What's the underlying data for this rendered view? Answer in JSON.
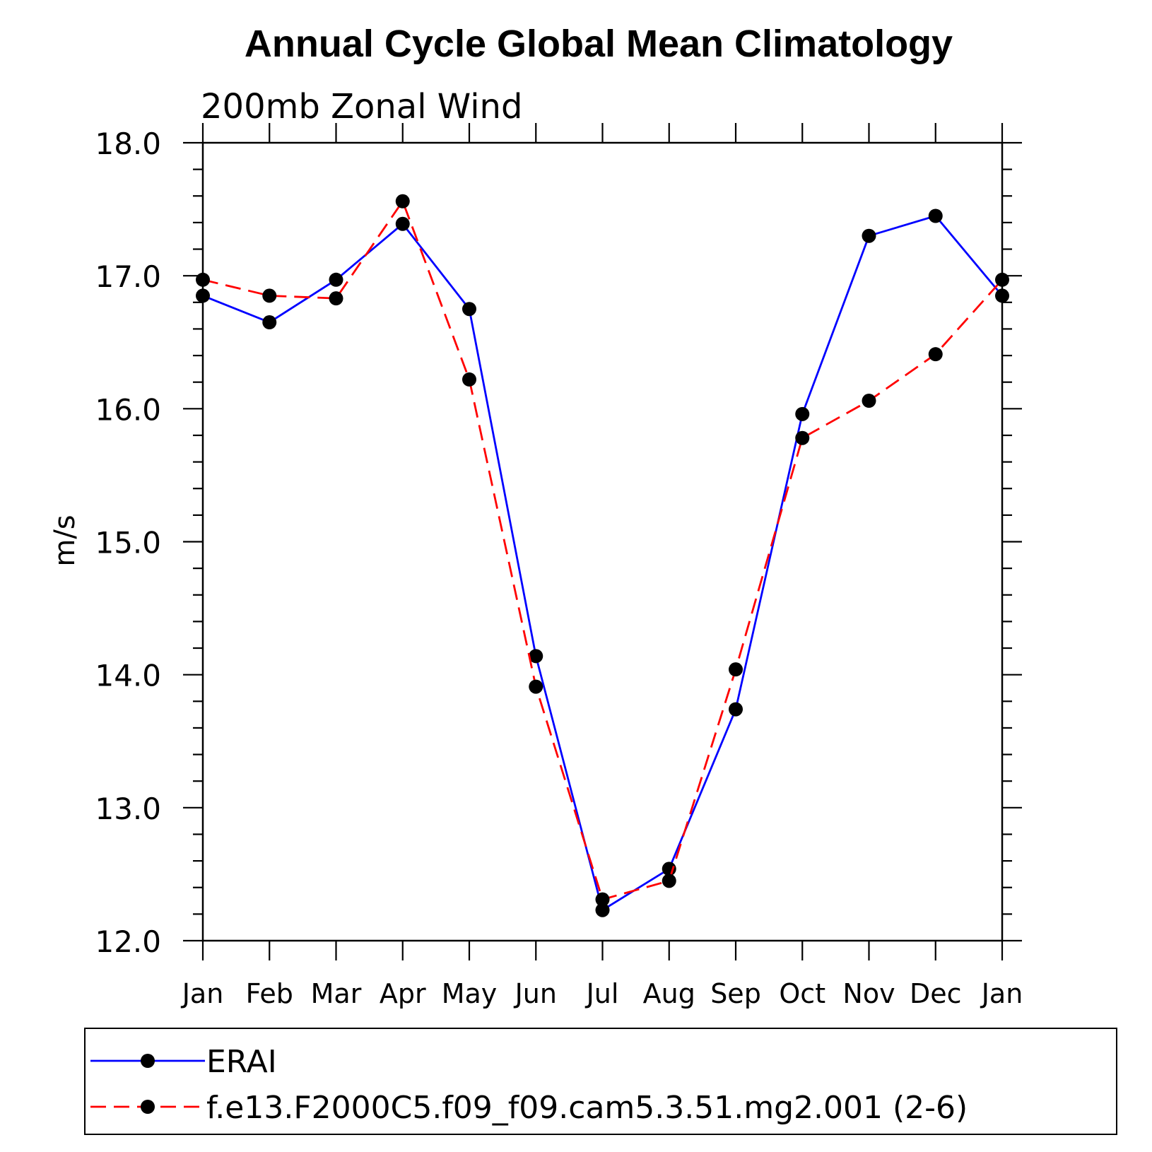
{
  "chart_data": {
    "type": "line",
    "title": "Annual Cycle Global Mean Climatology",
    "subtitle": "200mb Zonal Wind",
    "xlabel": "",
    "ylabel": "m/s",
    "ylim": [
      12.0,
      18.0
    ],
    "yticks": [
      "12.0",
      "13.0",
      "14.0",
      "15.0",
      "16.0",
      "17.0",
      "18.0"
    ],
    "categories": [
      "Jan",
      "Feb",
      "Mar",
      "Apr",
      "May",
      "Jun",
      "Jul",
      "Aug",
      "Sep",
      "Oct",
      "Nov",
      "Dec",
      "Jan"
    ],
    "grid": false,
    "legend_position": "bottom",
    "series": [
      {
        "name": "ERAI",
        "color": "#0000ff",
        "dash": "solid",
        "values": [
          16.85,
          16.65,
          16.97,
          17.39,
          16.75,
          14.14,
          12.23,
          12.54,
          13.74,
          15.96,
          17.3,
          17.45,
          16.85
        ]
      },
      {
        "name": "f.e13.F2000C5.f09_f09.cam5.3.51.mg2.001 (2-6)",
        "color": "#ff0000",
        "dash": "dashed",
        "values": [
          16.97,
          16.85,
          16.83,
          17.56,
          16.22,
          13.91,
          12.31,
          12.45,
          14.04,
          15.78,
          16.06,
          16.41,
          16.97
        ]
      }
    ]
  }
}
